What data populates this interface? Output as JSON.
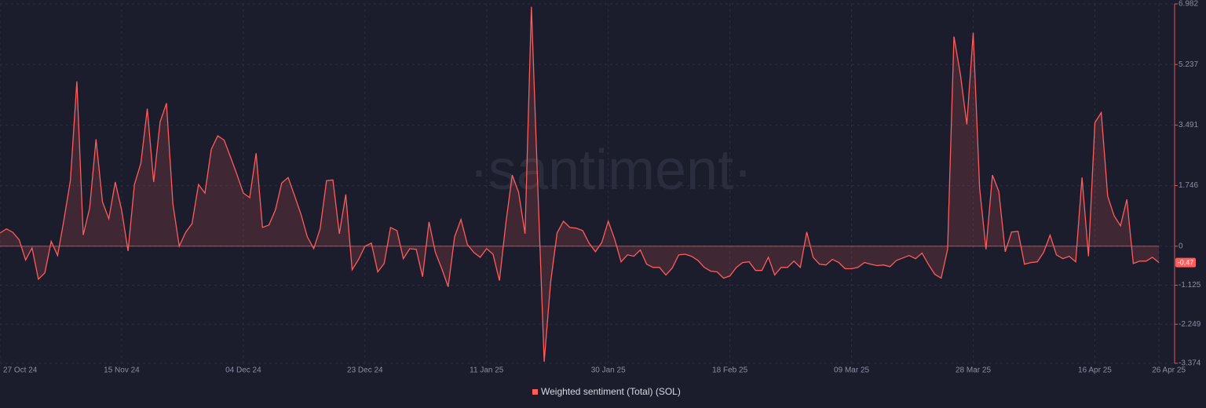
{
  "chart_data": {
    "type": "line",
    "watermark": "·santiment·",
    "categories": [
      "27 Oct 24",
      null,
      null,
      null,
      null,
      null,
      null,
      null,
      null,
      null,
      null,
      null,
      null,
      null,
      null,
      null,
      null,
      null,
      null,
      "15 Nov 24",
      null,
      null,
      null,
      null,
      null,
      null,
      null,
      null,
      null,
      null,
      null,
      null,
      null,
      null,
      null,
      null,
      null,
      null,
      "04 Dec 24",
      null,
      null,
      null,
      null,
      null,
      null,
      null,
      null,
      null,
      null,
      null,
      null,
      null,
      null,
      null,
      null,
      null,
      null,
      "23 Dec 24",
      null,
      null,
      null,
      null,
      null,
      null,
      null,
      null,
      null,
      null,
      null,
      null,
      null,
      null,
      null,
      null,
      null,
      null,
      "11 Jan 25",
      null,
      null,
      null,
      null,
      null,
      null,
      null,
      null,
      null,
      null,
      null,
      null,
      null,
      null,
      null,
      null,
      null,
      null,
      "30 Jan 25",
      null,
      null,
      null,
      null,
      null,
      null,
      null,
      null,
      null,
      null,
      null,
      null,
      null,
      null,
      null,
      null,
      null,
      null,
      "18 Feb 25",
      null,
      null,
      null,
      null,
      null,
      null,
      null,
      null,
      null,
      null,
      null,
      null,
      null,
      null,
      null,
      null,
      null,
      null,
      "09 Mar 25",
      null,
      null,
      null,
      null,
      null,
      null,
      null,
      null,
      null,
      null,
      null,
      null,
      null,
      null,
      null,
      null,
      null,
      null,
      "28 Mar 25",
      null,
      null,
      null,
      null,
      null,
      null,
      null,
      null,
      null,
      null,
      null,
      null,
      null,
      null,
      null,
      null,
      null,
      null,
      "16 Apr 25",
      null,
      null,
      null,
      null,
      null,
      null,
      null,
      null,
      null,
      "26 Apr 25"
    ],
    "series": [
      {
        "name": "Weighted sentiment (Total) (SOL)",
        "color": "#ff5c5c",
        "values": [
          0.38,
          0.5,
          0.4,
          0.18,
          -0.4,
          -0.05,
          -0.95,
          -0.77,
          0.14,
          -0.27,
          0.77,
          1.9,
          4.75,
          0.32,
          1.1,
          3.08,
          1.28,
          0.79,
          1.85,
          1.04,
          -0.14,
          1.78,
          2.39,
          3.96,
          1.85,
          3.58,
          4.12,
          1.22,
          0,
          0.4,
          0.65,
          1.78,
          1.53,
          2.79,
          3.18,
          3.06,
          2.57,
          2.07,
          1.53,
          1.4,
          2.68,
          0.54,
          0.61,
          1.04,
          1.82,
          1.98,
          1.46,
          0.92,
          0.27,
          -0.07,
          0.5,
          1.89,
          1.91,
          0.36,
          1.49,
          -0.68,
          -0.38,
          0,
          0.09,
          -0.74,
          -0.5,
          0.54,
          0.45,
          -0.36,
          -0.07,
          -0.09,
          -0.88,
          0.7,
          -0.18,
          -0.65,
          -1.17,
          0.27,
          0.77,
          0.05,
          -0.18,
          -0.32,
          -0.07,
          -0.23,
          -0.99,
          0.65,
          2.05,
          1.55,
          0.36,
          6.9,
          1.67,
          -3.33,
          -1.04,
          0.38,
          0.72,
          0.54,
          0.52,
          0.45,
          0.09,
          -0.16,
          0.11,
          0.72,
          0.2,
          -0.45,
          -0.25,
          -0.29,
          -0.11,
          -0.52,
          -0.61,
          -0.61,
          -0.83,
          -0.63,
          -0.25,
          -0.23,
          -0.29,
          -0.41,
          -0.61,
          -0.72,
          -0.74,
          -0.92,
          -0.86,
          -0.61,
          -0.47,
          -0.45,
          -0.7,
          -0.7,
          -0.32,
          -0.83,
          -0.61,
          -0.61,
          -0.43,
          -0.61,
          0.41,
          -0.32,
          -0.52,
          -0.54,
          -0.38,
          -0.47,
          -0.65,
          -0.65,
          -0.61,
          -0.47,
          -0.52,
          -0.56,
          -0.54,
          -0.59,
          -0.41,
          -0.34,
          -0.27,
          -0.36,
          -0.2,
          -0.52,
          -0.81,
          -0.92,
          -0.09,
          6.04,
          4.95,
          3.51,
          6.15,
          1.67,
          -0.09,
          2.05,
          1.58,
          -0.16,
          0.41,
          0.43,
          -0.52,
          -0.47,
          -0.45,
          -0.18,
          0.32,
          -0.25,
          -0.36,
          -0.29,
          -0.45,
          1.98,
          -0.29,
          3.56,
          3.85,
          1.44,
          0.88,
          0.59,
          1.35,
          -0.5,
          -0.43,
          -0.43,
          -0.32,
          -0.47
        ]
      }
    ],
    "ylim": [
      -3.374,
      6.982
    ],
    "yticks": [
      6.982,
      5.237,
      3.491,
      1.746,
      0,
      -1.125,
      -2.249,
      -3.374
    ],
    "grid": true
  }
}
